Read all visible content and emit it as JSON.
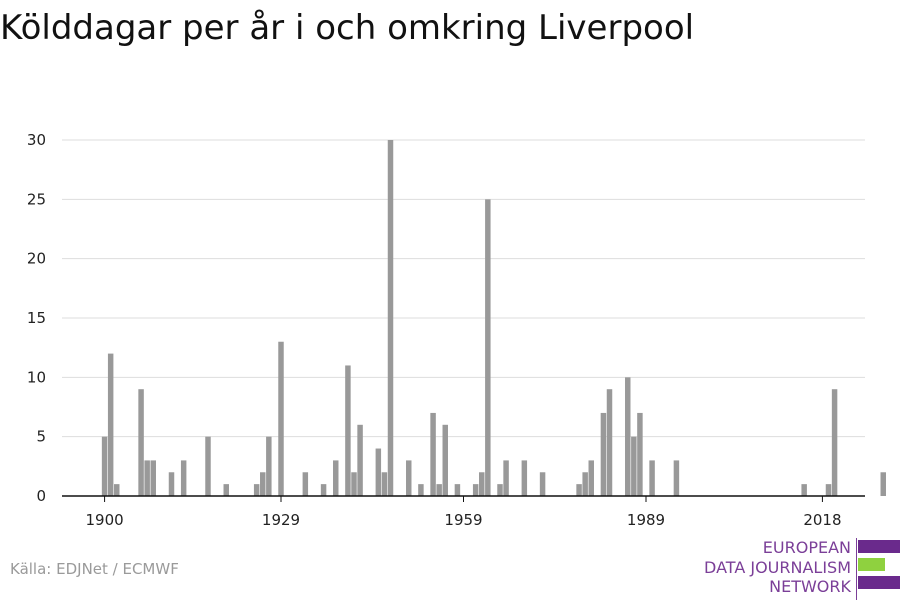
{
  "title": "Kölddagar per år i och omkring Liverpool",
  "source": "Källa: EDJNet / ECMWF",
  "logo": {
    "lines": [
      "EUROPEAN",
      "DATA JOURNALISM",
      "NETWORK"
    ],
    "colors": {
      "purple": "#6a2a8c",
      "green": "#8fd13f",
      "text": "#7b3f98"
    }
  },
  "chart_data": {
    "type": "bar",
    "title": "Kölddagar per år i och omkring Liverpool",
    "xlabel": "",
    "ylabel": "",
    "x_ticks": [
      1900,
      1929,
      1959,
      1989,
      2018
    ],
    "y_ticks": [
      0,
      5,
      10,
      15,
      20,
      25,
      30
    ],
    "ylim": [
      0,
      30
    ],
    "xlim": [
      1893,
      2025
    ],
    "grid": true,
    "bar_color": "#999999",
    "series": [
      {
        "x": [
          1900,
          1901,
          1902,
          1906,
          1907,
          1908,
          1911,
          1913,
          1917,
          1920,
          1925,
          1926,
          1927,
          1929,
          1933,
          1936,
          1938,
          1940,
          1941,
          1942,
          1945,
          1946,
          1947,
          1950,
          1952,
          1954,
          1955,
          1956,
          1958,
          1961,
          1962,
          1963,
          1965,
          1966,
          1969,
          1972,
          1978,
          1979,
          1980,
          1982,
          1983,
          1986,
          1987,
          1988,
          1990,
          1994,
          2015,
          2019,
          2020,
          2028
        ],
        "values": [
          5,
          12,
          1,
          9,
          3,
          3,
          2,
          3,
          5,
          1,
          1,
          2,
          5,
          13,
          2,
          1,
          3,
          11,
          2,
          6,
          4,
          2,
          30,
          3,
          1,
          7,
          1,
          6,
          1,
          1,
          2,
          25,
          1,
          3,
          3,
          2,
          1,
          2,
          3,
          7,
          9,
          10,
          5,
          7,
          3,
          3,
          1,
          1,
          9,
          2
        ]
      }
    ]
  }
}
